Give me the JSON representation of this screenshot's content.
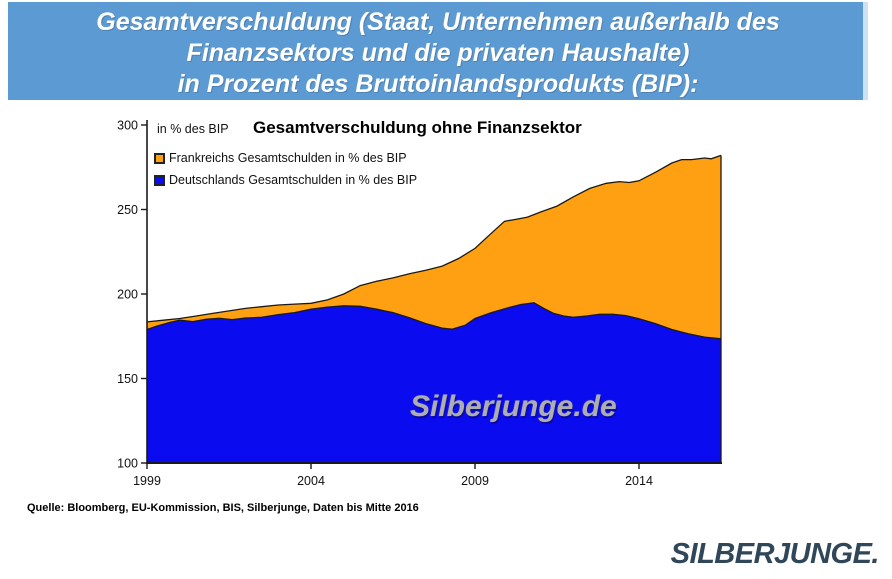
{
  "header": {
    "bg_color": "#5b9ad2",
    "lines": [
      "Gesamtverschuldung (Staat, Unternehmen außerhalb des",
      "Finanzsektors und die privaten Haushalte)",
      "in Prozent des Bruttoinlandsprodukts (BIP):"
    ]
  },
  "chart": {
    "unit_label": "in % des BIP",
    "title": "Gesamtverschuldung ohne Finanzsektor",
    "legend": [
      {
        "label": "Frankreichs Gesamtschulden in % des BIP",
        "color": "#ffa012"
      },
      {
        "label": "Deutschlands Gesamtschulden in % des BIP",
        "color": "#0b0bf0"
      }
    ],
    "watermark": "Silberjunge.de"
  },
  "chart_data": {
    "type": "area",
    "title": "Gesamtverschuldung ohne Finanzsektor",
    "unit": "in % des BIP",
    "x_range": [
      1999,
      2016.5
    ],
    "y_range": [
      100,
      300
    ],
    "y_ticks": [
      100,
      150,
      200,
      250,
      300
    ],
    "x_ticks": [
      1999,
      2004,
      2009,
      2014
    ],
    "grid": false,
    "legend_position": "top-left",
    "axis_color": "#1a1a1a",
    "line_color": "#1a1a1a",
    "series": [
      {
        "name": "Frankreichs Gesamtschulden in % des BIP",
        "color": "#ffa012",
        "points": [
          [
            1999,
            183.5
          ],
          [
            1999.5,
            184.5
          ],
          [
            2000,
            185.5
          ],
          [
            2000.5,
            187
          ],
          [
            2001,
            188.5
          ],
          [
            2001.5,
            190
          ],
          [
            2002,
            191.5
          ],
          [
            2002.5,
            192.5
          ],
          [
            2003,
            193.5
          ],
          [
            2003.5,
            194
          ],
          [
            2004,
            194.5
          ],
          [
            2004.5,
            196.5
          ],
          [
            2005,
            200
          ],
          [
            2005.5,
            205
          ],
          [
            2006,
            207.5
          ],
          [
            2006.5,
            209.5
          ],
          [
            2007,
            212
          ],
          [
            2007.5,
            214
          ],
          [
            2008,
            216.5
          ],
          [
            2008.5,
            221
          ],
          [
            2009,
            227
          ],
          [
            2009.5,
            236
          ],
          [
            2009.9,
            243
          ],
          [
            2010.2,
            244
          ],
          [
            2010.6,
            245.5
          ],
          [
            2011,
            248.5
          ],
          [
            2011.5,
            252
          ],
          [
            2012,
            257.5
          ],
          [
            2012.5,
            262.5
          ],
          [
            2013,
            265.5
          ],
          [
            2013.4,
            266.5
          ],
          [
            2013.7,
            266
          ],
          [
            2014,
            267
          ],
          [
            2014.5,
            272
          ],
          [
            2015,
            277.5
          ],
          [
            2015.3,
            279.5
          ],
          [
            2015.6,
            279.5
          ],
          [
            2016,
            280.5
          ],
          [
            2016.2,
            280
          ],
          [
            2016.5,
            282
          ]
        ]
      },
      {
        "name": "Deutschlands Gesamtschulden in % des BIP",
        "color": "#0b0bf0",
        "points": [
          [
            1999,
            179
          ],
          [
            1999.3,
            181
          ],
          [
            1999.7,
            183.2
          ],
          [
            2000,
            184.5
          ],
          [
            2000.4,
            183.6
          ],
          [
            2000.8,
            185
          ],
          [
            2001.2,
            185.6
          ],
          [
            2001.6,
            184.8
          ],
          [
            2002,
            185.8
          ],
          [
            2002.5,
            186.2
          ],
          [
            2003,
            187.8
          ],
          [
            2003.5,
            189
          ],
          [
            2004,
            191
          ],
          [
            2004.5,
            192.2
          ],
          [
            2005,
            193
          ],
          [
            2005.5,
            192.7
          ],
          [
            2006,
            191
          ],
          [
            2006.5,
            189
          ],
          [
            2007,
            186
          ],
          [
            2007.5,
            182.5
          ],
          [
            2008,
            179.8
          ],
          [
            2008.3,
            179.2
          ],
          [
            2008.7,
            181.5
          ],
          [
            2009,
            185.5
          ],
          [
            2009.5,
            189
          ],
          [
            2010,
            191.8
          ],
          [
            2010.4,
            193.8
          ],
          [
            2010.8,
            194.8
          ],
          [
            2011.1,
            191.5
          ],
          [
            2011.4,
            188.5
          ],
          [
            2011.7,
            187
          ],
          [
            2012,
            186.2
          ],
          [
            2012.4,
            187
          ],
          [
            2012.8,
            188
          ],
          [
            2013.2,
            188
          ],
          [
            2013.6,
            187.2
          ],
          [
            2014,
            185.3
          ],
          [
            2014.5,
            182.5
          ],
          [
            2015,
            179
          ],
          [
            2015.5,
            176.5
          ],
          [
            2016,
            174.5
          ],
          [
            2016.5,
            173.5
          ]
        ]
      }
    ]
  },
  "source_line": "Quelle: Bloomberg, EU-Kommission, BIS, Silberjunge, Daten bis Mitte 2016",
  "logo_text": "SILBERJUNGE."
}
